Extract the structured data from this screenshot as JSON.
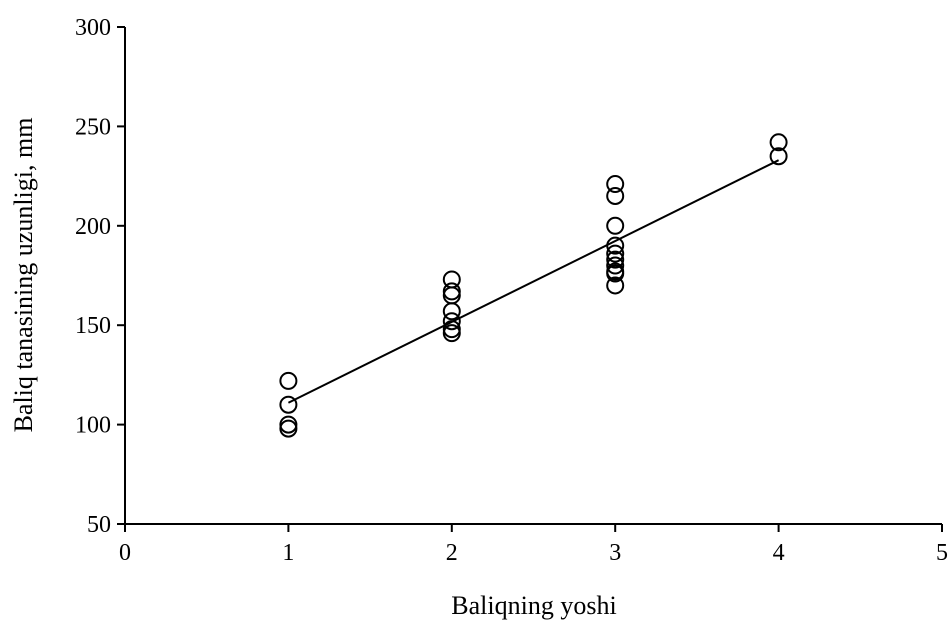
{
  "chart_data": {
    "type": "scatter",
    "title": "",
    "xlabel": "Baliqning yoshi",
    "ylabel": "Baliq tanasining uzunligi, mm",
    "xlim": [
      0,
      5
    ],
    "ylim": [
      50,
      300
    ],
    "x_ticks": [
      0,
      1,
      2,
      3,
      4,
      5
    ],
    "y_ticks": [
      50,
      100,
      150,
      200,
      250,
      300
    ],
    "grid": false,
    "legend": "none",
    "marker": "open-circle",
    "color": "#000000",
    "series": [
      {
        "points": [
          [
            1,
            122
          ],
          [
            1,
            110
          ],
          [
            1,
            100
          ],
          [
            1,
            98
          ],
          [
            2,
            173
          ],
          [
            2,
            167
          ],
          [
            2,
            165
          ],
          [
            2,
            157
          ],
          [
            2,
            152
          ],
          [
            2,
            148
          ],
          [
            2,
            146
          ],
          [
            3,
            221
          ],
          [
            3,
            215
          ],
          [
            3,
            200
          ],
          [
            3,
            190
          ],
          [
            3,
            186
          ],
          [
            3,
            183
          ],
          [
            3,
            180
          ],
          [
            3,
            177
          ],
          [
            3,
            176
          ],
          [
            3,
            170
          ],
          [
            4,
            242
          ],
          [
            4,
            235
          ]
        ]
      }
    ],
    "trendline": {
      "type": "linear",
      "from": [
        1,
        111
      ],
      "to": [
        4,
        233
      ]
    }
  }
}
